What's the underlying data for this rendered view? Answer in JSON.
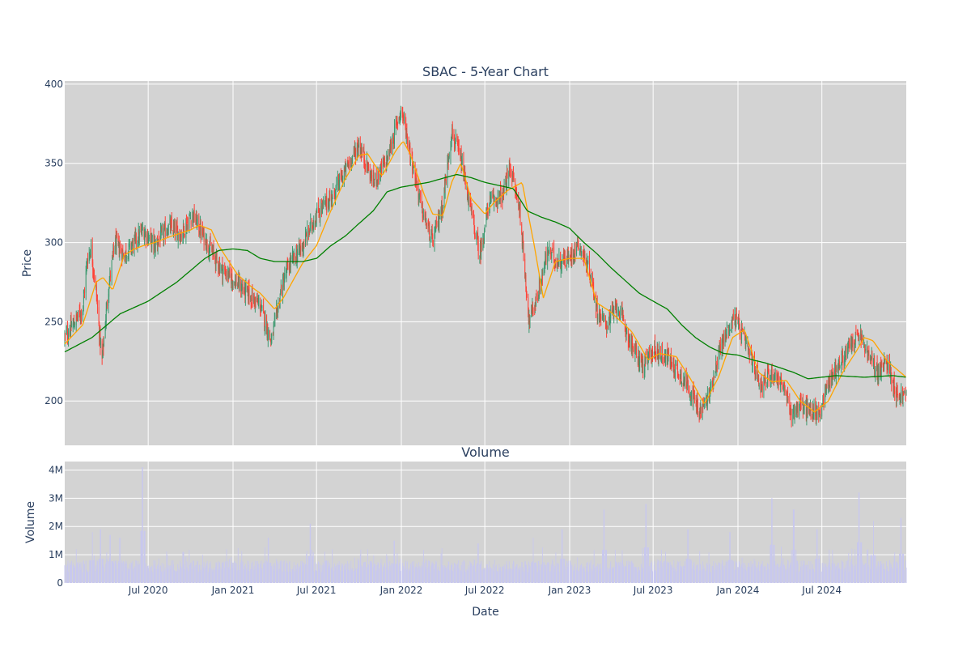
{
  "chart_data": [
    {
      "type": "candlestick",
      "title": "SBAC - 5-Year Chart",
      "ylabel": "Price",
      "xlabel": "",
      "ylim": [
        172,
        402
      ],
      "xlim": [
        "2020-01-02",
        "2024-12-31"
      ],
      "yticks": [
        200,
        250,
        300,
        350,
        400
      ],
      "xticks": [
        "2020-07-01",
        "2021-01-01",
        "2021-07-01",
        "2022-01-01",
        "2022-07-01",
        "2023-01-01",
        "2023-07-01",
        "2024-01-01",
        "2024-07-01"
      ],
      "grid": true,
      "background": "#d3d3d3",
      "colors": {
        "up": "#3d9970",
        "down": "#ff4136",
        "ma_short": "#ffa500",
        "ma_long": "#008000"
      },
      "close_anchors": [
        [
          "2020-01-02",
          240
        ],
        [
          "2020-01-20",
          248
        ],
        [
          "2020-02-10",
          258
        ],
        [
          "2020-02-20",
          290
        ],
        [
          "2020-02-28",
          296
        ],
        [
          "2020-03-10",
          270
        ],
        [
          "2020-03-18",
          240
        ],
        [
          "2020-03-23",
          225
        ],
        [
          "2020-04-05",
          270
        ],
        [
          "2020-04-20",
          300
        ],
        [
          "2020-05-10",
          292
        ],
        [
          "2020-06-01",
          300
        ],
        [
          "2020-06-20",
          308
        ],
        [
          "2020-07-15",
          298
        ],
        [
          "2020-08-15",
          310
        ],
        [
          "2020-09-10",
          305
        ],
        [
          "2020-10-05",
          318
        ],
        [
          "2020-11-01",
          302
        ],
        [
          "2020-11-20",
          292
        ],
        [
          "2020-12-10",
          282
        ],
        [
          "2021-01-01",
          277
        ],
        [
          "2021-02-01",
          268
        ],
        [
          "2021-03-01",
          260
        ],
        [
          "2021-03-25",
          237
        ],
        [
          "2021-04-15",
          270
        ],
        [
          "2021-05-01",
          285
        ],
        [
          "2021-06-01",
          298
        ],
        [
          "2021-07-01",
          318
        ],
        [
          "2021-08-01",
          328
        ],
        [
          "2021-09-01",
          345
        ],
        [
          "2021-10-01",
          362
        ],
        [
          "2021-11-01",
          338
        ],
        [
          "2021-12-01",
          352
        ],
        [
          "2022-01-01",
          385
        ],
        [
          "2022-01-15",
          365
        ],
        [
          "2022-02-15",
          320
        ],
        [
          "2022-03-10",
          300
        ],
        [
          "2022-04-01",
          325
        ],
        [
          "2022-04-20",
          370
        ],
        [
          "2022-05-10",
          352
        ],
        [
          "2022-06-01",
          320
        ],
        [
          "2022-06-20",
          292
        ],
        [
          "2022-07-10",
          325
        ],
        [
          "2022-08-10",
          330
        ],
        [
          "2022-08-25",
          348
        ],
        [
          "2022-09-15",
          320
        ],
        [
          "2022-10-05",
          250
        ],
        [
          "2022-10-25",
          268
        ],
        [
          "2022-11-15",
          295
        ],
        [
          "2022-12-05",
          288
        ],
        [
          "2023-01-01",
          290
        ],
        [
          "2023-01-20",
          300
        ],
        [
          "2023-02-15",
          280
        ],
        [
          "2023-03-01",
          258
        ],
        [
          "2023-03-20",
          248
        ],
        [
          "2023-04-15",
          260
        ],
        [
          "2023-05-15",
          235
        ],
        [
          "2023-06-10",
          222
        ],
        [
          "2023-07-01",
          232
        ],
        [
          "2023-08-01",
          228
        ],
        [
          "2023-08-20",
          220
        ],
        [
          "2023-09-15",
          210
        ],
        [
          "2023-10-10",
          192
        ],
        [
          "2023-11-01",
          205
        ],
        [
          "2023-11-20",
          230
        ],
        [
          "2023-12-10",
          245
        ],
        [
          "2023-12-25",
          253
        ],
        [
          "2024-01-10",
          242
        ],
        [
          "2024-02-01",
          225
        ],
        [
          "2024-02-20",
          210
        ],
        [
          "2024-03-15",
          218
        ],
        [
          "2024-04-05",
          212
        ],
        [
          "2024-04-25",
          192
        ],
        [
          "2024-05-15",
          198
        ],
        [
          "2024-06-01",
          194
        ],
        [
          "2024-06-25",
          192
        ],
        [
          "2024-07-15",
          212
        ],
        [
          "2024-08-01",
          220
        ],
        [
          "2024-09-01",
          235
        ],
        [
          "2024-09-20",
          242
        ],
        [
          "2024-10-10",
          228
        ],
        [
          "2024-11-01",
          218
        ],
        [
          "2024-11-20",
          225
        ],
        [
          "2024-12-10",
          204
        ],
        [
          "2024-12-31",
          203
        ]
      ],
      "ma_short_anchors": [
        [
          "2020-01-02",
          236
        ],
        [
          "2020-02-10",
          248
        ],
        [
          "2020-03-10",
          275
        ],
        [
          "2020-03-25",
          278
        ],
        [
          "2020-04-15",
          270
        ],
        [
          "2020-05-10",
          292
        ],
        [
          "2020-06-01",
          296
        ],
        [
          "2020-06-20",
          298
        ],
        [
          "2020-07-15",
          300
        ],
        [
          "2020-08-20",
          304
        ],
        [
          "2020-10-01",
          308
        ],
        [
          "2020-10-20",
          311
        ],
        [
          "2020-11-15",
          308
        ],
        [
          "2020-12-01",
          298
        ],
        [
          "2021-01-10",
          280
        ],
        [
          "2021-02-10",
          272
        ],
        [
          "2021-03-01",
          268
        ],
        [
          "2021-04-01",
          258
        ],
        [
          "2021-04-20",
          265
        ],
        [
          "2021-06-01",
          287
        ],
        [
          "2021-07-01",
          298
        ],
        [
          "2021-08-01",
          320
        ],
        [
          "2021-09-01",
          340
        ],
        [
          "2021-10-01",
          355
        ],
        [
          "2021-10-20",
          356
        ],
        [
          "2021-11-20",
          342
        ],
        [
          "2021-12-20",
          358
        ],
        [
          "2022-01-05",
          364
        ],
        [
          "2022-01-20",
          356
        ],
        [
          "2022-02-20",
          330
        ],
        [
          "2022-03-10",
          318
        ],
        [
          "2022-04-01",
          317
        ],
        [
          "2022-04-20",
          338
        ],
        [
          "2022-05-10",
          350
        ],
        [
          "2022-06-01",
          328
        ],
        [
          "2022-07-01",
          318
        ],
        [
          "2022-07-20",
          325
        ],
        [
          "2022-08-20",
          333
        ],
        [
          "2022-09-20",
          338
        ],
        [
          "2022-10-15",
          300
        ],
        [
          "2022-11-05",
          265
        ],
        [
          "2022-12-01",
          288
        ],
        [
          "2023-01-01",
          290
        ],
        [
          "2023-02-01",
          290
        ],
        [
          "2023-03-01",
          262
        ],
        [
          "2023-04-01",
          256
        ],
        [
          "2023-05-15",
          244
        ],
        [
          "2023-06-20",
          226
        ],
        [
          "2023-07-15",
          230
        ],
        [
          "2023-08-20",
          228
        ],
        [
          "2023-09-20",
          214
        ],
        [
          "2023-10-20",
          198
        ],
        [
          "2023-11-20",
          215
        ],
        [
          "2023-12-20",
          240
        ],
        [
          "2024-01-15",
          245
        ],
        [
          "2024-02-15",
          218
        ],
        [
          "2024-03-15",
          212
        ],
        [
          "2024-04-15",
          213
        ],
        [
          "2024-05-15",
          200
        ],
        [
          "2024-06-15",
          193
        ],
        [
          "2024-07-15",
          200
        ],
        [
          "2024-08-15",
          218
        ],
        [
          "2024-09-15",
          232
        ],
        [
          "2024-10-01",
          240
        ],
        [
          "2024-10-20",
          238
        ],
        [
          "2024-11-20",
          225
        ],
        [
          "2024-12-31",
          215
        ]
      ],
      "ma_long_anchors": [
        [
          "2020-01-02",
          231
        ],
        [
          "2020-03-01",
          240
        ],
        [
          "2020-05-01",
          255
        ],
        [
          "2020-07-01",
          263
        ],
        [
          "2020-09-01",
          275
        ],
        [
          "2020-11-01",
          290
        ],
        [
          "2020-12-01",
          295
        ],
        [
          "2021-01-01",
          296
        ],
        [
          "2021-02-01",
          295
        ],
        [
          "2021-03-01",
          290
        ],
        [
          "2021-04-01",
          288
        ],
        [
          "2021-06-01",
          288
        ],
        [
          "2021-07-01",
          290
        ],
        [
          "2021-08-01",
          298
        ],
        [
          "2021-09-01",
          304
        ],
        [
          "2021-10-01",
          312
        ],
        [
          "2021-11-01",
          320
        ],
        [
          "2021-12-01",
          332
        ],
        [
          "2022-01-01",
          335
        ],
        [
          "2022-03-01",
          338
        ],
        [
          "2022-05-01",
          343
        ],
        [
          "2022-06-01",
          341
        ],
        [
          "2022-07-01",
          338
        ],
        [
          "2022-08-01",
          336
        ],
        [
          "2022-09-01",
          334
        ],
        [
          "2022-10-01",
          320
        ],
        [
          "2022-11-01",
          316
        ],
        [
          "2022-12-01",
          313
        ],
        [
          "2023-01-01",
          309
        ],
        [
          "2023-02-01",
          300
        ],
        [
          "2023-03-01",
          293
        ],
        [
          "2023-04-01",
          284
        ],
        [
          "2023-06-01",
          268
        ],
        [
          "2023-07-01",
          263
        ],
        [
          "2023-08-01",
          258
        ],
        [
          "2023-09-01",
          248
        ],
        [
          "2023-10-01",
          240
        ],
        [
          "2023-11-01",
          234
        ],
        [
          "2023-12-01",
          230
        ],
        [
          "2024-01-01",
          229
        ],
        [
          "2024-02-01",
          226
        ],
        [
          "2024-03-01",
          224
        ],
        [
          "2024-04-01",
          221
        ],
        [
          "2024-05-01",
          218
        ],
        [
          "2024-06-01",
          214
        ],
        [
          "2024-07-01",
          215
        ],
        [
          "2024-08-01",
          216
        ],
        [
          "2024-10-01",
          215
        ],
        [
          "2024-12-01",
          216
        ],
        [
          "2024-12-31",
          215
        ]
      ]
    },
    {
      "type": "bar",
      "title": "Volume",
      "ylabel": "Volume",
      "xlabel": "Date",
      "ylim": [
        0,
        4300000
      ],
      "yticks": [
        0,
        1000000,
        2000000,
        3000000,
        4000000
      ],
      "ytick_labels": [
        "0",
        "1M",
        "2M",
        "3M",
        "4M"
      ],
      "xtick_labels": [
        "Jul 2020",
        "Jan 2021",
        "Jul 2021",
        "Jan 2022",
        "Jul 2022",
        "Jan 2023",
        "Jul 2023",
        "Jan 2024",
        "Jul 2024"
      ],
      "bar_color": "#c8c8ee",
      "baseline_volume": 700000,
      "spikes": [
        [
          "2020-03-01",
          1800000
        ],
        [
          "2020-03-20",
          1900000
        ],
        [
          "2020-04-10",
          1700000
        ],
        [
          "2020-05-01",
          1600000
        ],
        [
          "2020-06-19",
          4100000
        ],
        [
          "2020-09-15",
          1100000
        ],
        [
          "2021-03-19",
          1600000
        ],
        [
          "2021-06-18",
          2100000
        ],
        [
          "2021-12-17",
          1500000
        ],
        [
          "2022-06-17",
          1400000
        ],
        [
          "2022-10-15",
          1600000
        ],
        [
          "2022-12-16",
          1900000
        ],
        [
          "2023-03-17",
          2600000
        ],
        [
          "2023-06-16",
          2800000
        ],
        [
          "2023-09-15",
          1900000
        ],
        [
          "2023-12-15",
          1800000
        ],
        [
          "2024-03-15",
          3000000
        ],
        [
          "2024-05-01",
          2600000
        ],
        [
          "2024-06-21",
          1900000
        ],
        [
          "2024-09-20",
          3200000
        ],
        [
          "2024-10-20",
          2200000
        ],
        [
          "2024-12-20",
          2300000
        ]
      ]
    }
  ]
}
